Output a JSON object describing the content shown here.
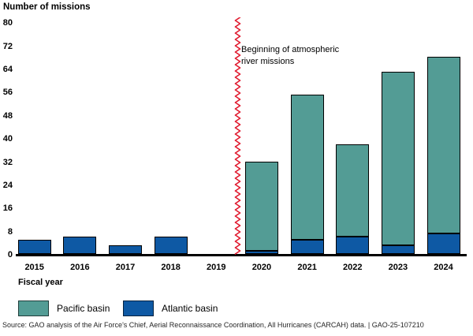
{
  "chart_data": {
    "type": "bar",
    "stacked": true,
    "title": "Number of missions",
    "xlabel": "Fiscal year",
    "ylabel": "Number of missions",
    "ylim": [
      0,
      80
    ],
    "yticks": [
      0,
      8,
      16,
      24,
      32,
      40,
      48,
      56,
      64,
      72,
      80
    ],
    "grid": false,
    "legend_position": "bottom",
    "categories": [
      "2015",
      "2016",
      "2017",
      "2018",
      "2019",
      "2020",
      "2021",
      "2022",
      "2023",
      "2024"
    ],
    "stack_order_bottom_to_top": [
      "Atlantic basin",
      "Pacific basin"
    ],
    "series": [
      {
        "name": "Pacific basin",
        "color": "#539C95",
        "values": [
          0,
          0,
          0,
          0,
          0,
          31,
          50,
          32,
          60,
          61
        ]
      },
      {
        "name": "Atlantic basin",
        "color": "#0E59A4",
        "values": [
          5,
          6,
          3,
          6,
          0,
          1,
          5,
          6,
          3,
          7
        ]
      }
    ],
    "totals": [
      5,
      6,
      3,
      6,
      0,
      32,
      55,
      38,
      63,
      68
    ],
    "annotation": {
      "line1": "Beginning of atmospheric",
      "line2": "river missions",
      "marker": "red-zigzag-vertical-line",
      "between_categories": [
        "2019",
        "2020"
      ]
    }
  },
  "legend": {
    "items": [
      {
        "label": "Pacific basin",
        "color": "#539C95"
      },
      {
        "label": "Atlantic basin",
        "color": "#0E59A4"
      }
    ]
  },
  "footer": {
    "source": "Source: GAO analysis of the Air Force's Chief, Aerial Reconnaissance Coordination, All Hurricanes (CARCAH) data.  |  GAO-25-107210"
  },
  "colors": {
    "pacific_teal": "#539C95",
    "atlantic_blue": "#0E59A4",
    "zigzag_red": "#E0182D",
    "axis_black": "#000000"
  }
}
